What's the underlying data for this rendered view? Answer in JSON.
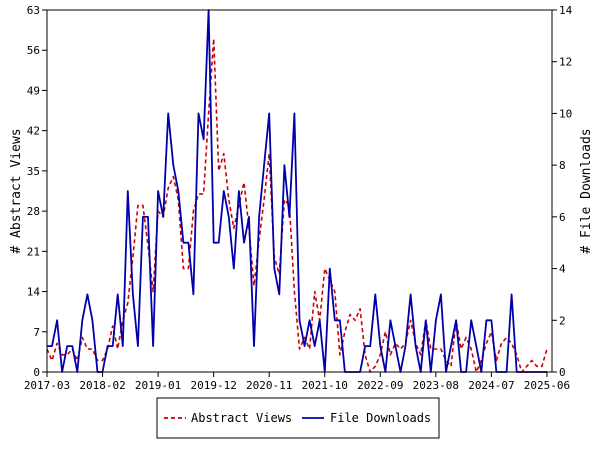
{
  "chart_data": {
    "type": "line",
    "title": "",
    "xlabel": "",
    "ylabel_left": "# Abstract Views",
    "ylabel_right": "# File Downloads",
    "x_tick_labels": [
      "2017-03",
      "2018-02",
      "2019-01",
      "2019-12",
      "2020-11",
      "2021-10",
      "2022-09",
      "2023-08",
      "2024-07",
      "2025-06"
    ],
    "x_tick_month_index": [
      0,
      11,
      22,
      33,
      44,
      55,
      66,
      77,
      88,
      99
    ],
    "x_range_months": [
      0,
      100
    ],
    "y_left_ticks": [
      "0",
      "7",
      "14",
      "21",
      "28",
      "35",
      "42",
      "49",
      "56",
      "63"
    ],
    "y_left_range": [
      0,
      63
    ],
    "y_right_ticks": [
      "0",
      "2",
      "4",
      "6",
      "8",
      "10",
      "12",
      "14"
    ],
    "y_right_range": [
      0,
      14
    ],
    "grid": false,
    "legend_position": "bottom",
    "series": [
      {
        "name": "Abstract Views",
        "axis": "left",
        "color": "#cc0000",
        "dash": true,
        "values": [
          4,
          2,
          5,
          3,
          3,
          4,
          2,
          6,
          4,
          4,
          2,
          2,
          4,
          8,
          4,
          9,
          12,
          20,
          29,
          29,
          22,
          14,
          28,
          27,
          32,
          34,
          30,
          18,
          18,
          28,
          31,
          31,
          45,
          58,
          35,
          38,
          30,
          25,
          29,
          33,
          25,
          15,
          23,
          30,
          38,
          20,
          17,
          30,
          29,
          14,
          4,
          6,
          4,
          14,
          9,
          18,
          16,
          14,
          3,
          7,
          10,
          9,
          11,
          3,
          0,
          1,
          3,
          7,
          3,
          5,
          4,
          5,
          9,
          5,
          3,
          9,
          4,
          4,
          4,
          2,
          1,
          9,
          4,
          6,
          4,
          0,
          2,
          5,
          7,
          2,
          5,
          6,
          5,
          3,
          0,
          1,
          2,
          1,
          1,
          4
        ]
      },
      {
        "name": "File Downloads",
        "axis": "right",
        "color": "#0000aa",
        "dash": false,
        "values": [
          1,
          1,
          2,
          0,
          1,
          1,
          0,
          2,
          3,
          2,
          0,
          0,
          1,
          1,
          3,
          1,
          7,
          3,
          1,
          6,
          6,
          1,
          7,
          6,
          10,
          8,
          7,
          5,
          5,
          3,
          10,
          9,
          14,
          5,
          5,
          7,
          6,
          4,
          7,
          5,
          6,
          1,
          6,
          8,
          10,
          4,
          3,
          8,
          6,
          10,
          2,
          1,
          2,
          1,
          2,
          0,
          4,
          2,
          2,
          0,
          0,
          0,
          0,
          1,
          1,
          3,
          1,
          0,
          2,
          1,
          0,
          1,
          3,
          1,
          0,
          2,
          0,
          2,
          3,
          0,
          1,
          2,
          0,
          0,
          2,
          1,
          0,
          2,
          2,
          0,
          0,
          0,
          3,
          0,
          0,
          0,
          0,
          0,
          0,
          0
        ]
      }
    ]
  }
}
